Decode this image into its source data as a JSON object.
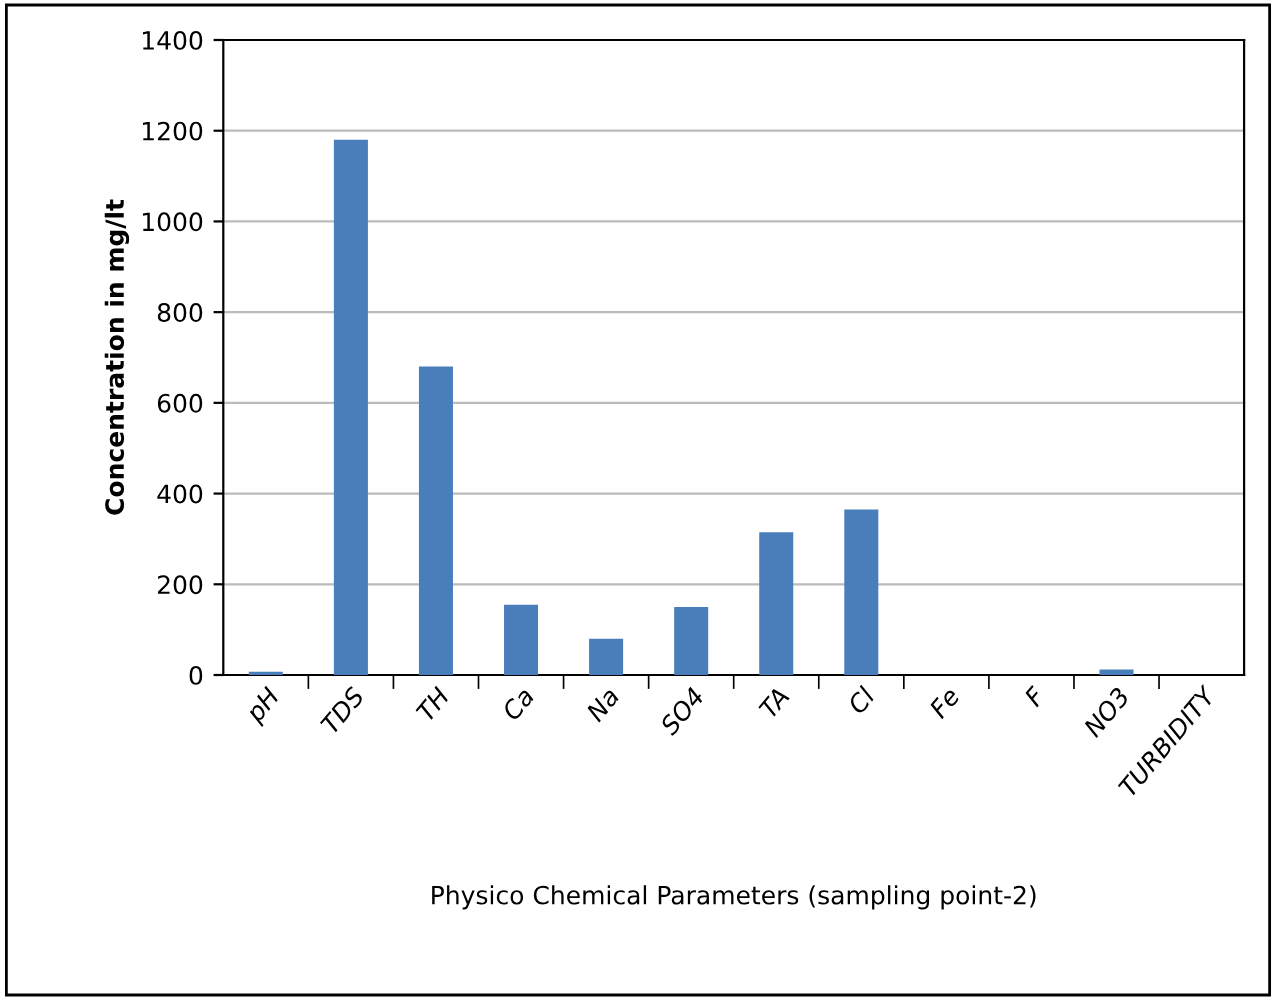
{
  "chart_data": {
    "type": "bar",
    "categories": [
      "pH",
      "TDS",
      "TH",
      "Ca",
      "Na",
      "SO4",
      "TA",
      "Cl",
      "Fe",
      "F",
      "NO3",
      "TURBIDITY"
    ],
    "values": [
      7,
      1180,
      680,
      155,
      80,
      150,
      315,
      365,
      null,
      null,
      12,
      null
    ],
    "color": "#4a7ebb",
    "xlabel": "Physico Chemical Parameters (sampling point-2)",
    "ylabel": "Concentration in mg/lt",
    "ylim": [
      0,
      1400
    ],
    "yticks": [
      0,
      200,
      400,
      600,
      800,
      1000,
      1200,
      1400
    ],
    "grid": "y"
  }
}
